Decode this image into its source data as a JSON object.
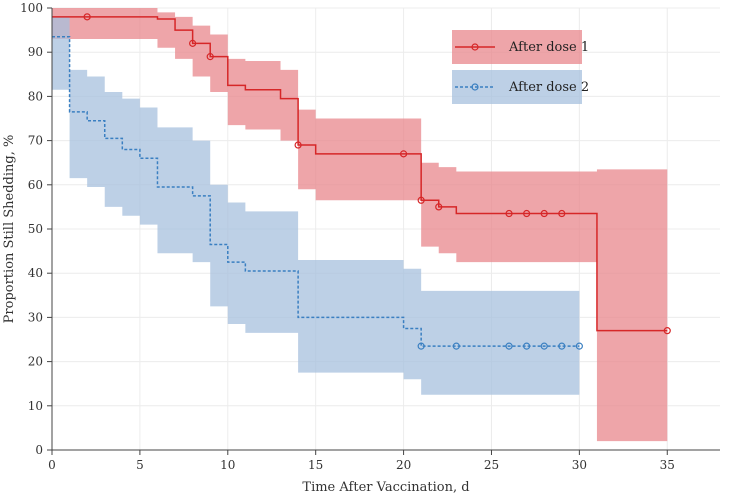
{
  "chart_data": {
    "type": "line",
    "title": "",
    "xlabel": "Time After Vaccination, d",
    "ylabel": "Proportion Still Shedding, %",
    "xlim": [
      0,
      38
    ],
    "ylim": [
      0,
      100
    ],
    "xticks": [
      "0",
      "5",
      "10",
      "15",
      "20",
      "25",
      "30",
      "35"
    ],
    "yticks": [
      "0",
      "10",
      "20",
      "30",
      "40",
      "50",
      "60",
      "70",
      "80",
      "90",
      "100"
    ],
    "grid": true,
    "legend_position": "top-right",
    "series": [
      {
        "name": "After dose 1",
        "color": "#d62728",
        "band_color": "#e8878c",
        "line_style": "solid",
        "steps": [
          [
            0,
            98
          ],
          [
            6,
            97.5
          ],
          [
            7,
            95
          ],
          [
            8,
            92
          ],
          [
            9,
            89
          ],
          [
            10,
            82.5
          ],
          [
            11,
            81.5
          ],
          [
            13,
            79.5
          ],
          [
            14,
            69
          ],
          [
            15,
            67
          ],
          [
            21,
            56.5
          ],
          [
            22,
            55
          ],
          [
            23,
            53.5
          ],
          [
            31,
            27
          ],
          [
            35,
            27
          ]
        ],
        "band": [
          [
            0,
            100,
            93
          ],
          [
            6,
            99,
            91
          ],
          [
            7,
            98,
            88.5
          ],
          [
            8,
            96,
            84.5
          ],
          [
            9,
            94,
            81
          ],
          [
            10,
            88.5,
            73.5
          ],
          [
            11,
            88,
            72.5
          ],
          [
            13,
            86,
            70
          ],
          [
            14,
            77,
            59
          ],
          [
            15,
            75,
            56.5
          ],
          [
            21,
            65,
            46
          ],
          [
            22,
            64,
            44.5
          ],
          [
            23,
            63,
            42.5
          ],
          [
            31,
            63.5,
            2
          ],
          [
            35,
            63.5,
            2
          ]
        ],
        "censor_marks": [
          [
            2,
            98
          ],
          [
            8,
            92
          ],
          [
            9,
            89
          ],
          [
            14,
            69
          ],
          [
            20,
            67
          ],
          [
            21,
            56.5
          ],
          [
            22,
            55
          ],
          [
            26,
            53.5
          ],
          [
            27,
            53.5
          ],
          [
            28,
            53.5
          ],
          [
            29,
            53.5
          ],
          [
            35,
            27
          ]
        ]
      },
      {
        "name": "After dose 2",
        "color": "#3a7fc1",
        "band_color": "#a7c0de",
        "line_style": "dashed",
        "steps": [
          [
            0,
            93.5
          ],
          [
            1,
            76.5
          ],
          [
            2,
            74.5
          ],
          [
            3,
            70.5
          ],
          [
            4,
            68
          ],
          [
            5,
            66
          ],
          [
            6,
            59.5
          ],
          [
            8,
            57.5
          ],
          [
            9,
            46.5
          ],
          [
            10,
            42.5
          ],
          [
            11,
            40.5
          ],
          [
            14,
            30
          ],
          [
            20,
            27.5
          ],
          [
            21,
            23.5
          ],
          [
            30,
            23.5
          ]
        ],
        "band": [
          [
            0,
            98,
            81.5
          ],
          [
            1,
            86,
            61.5
          ],
          [
            2,
            84.5,
            59.5
          ],
          [
            3,
            81,
            55
          ],
          [
            4,
            79.5,
            53
          ],
          [
            5,
            77.5,
            51
          ],
          [
            6,
            73,
            44.5
          ],
          [
            8,
            70,
            42.5
          ],
          [
            9,
            60,
            32.5
          ],
          [
            10,
            56,
            28.5
          ],
          [
            11,
            54,
            26.5
          ],
          [
            14,
            43,
            17.5
          ],
          [
            20,
            41,
            16
          ],
          [
            21,
            36,
            12.5
          ],
          [
            30,
            36,
            12.5
          ]
        ],
        "censor_marks": [
          [
            21,
            23.5
          ],
          [
            23,
            23.5
          ],
          [
            26,
            23.5
          ],
          [
            27,
            23.5
          ],
          [
            28,
            23.5
          ],
          [
            29,
            23.5
          ],
          [
            30,
            23.5
          ]
        ]
      }
    ]
  }
}
